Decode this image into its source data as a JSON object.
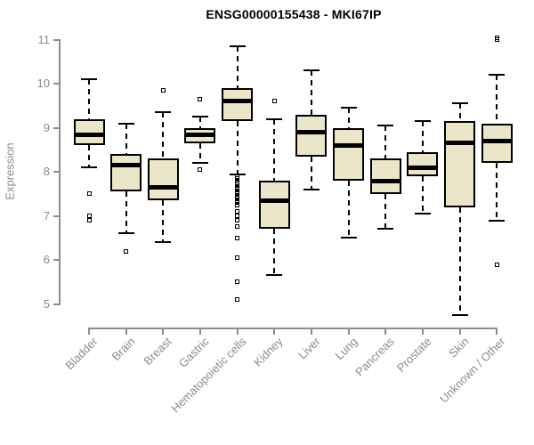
{
  "title": "ENSG00000155438 - MKI67IP",
  "colors": {
    "box_fill": "#EBE5C9",
    "box_border": "#000000",
    "median": "#000000",
    "axis": "#8C8C8C",
    "title_text": "#000000",
    "background": "#FFFFFF"
  },
  "chart_data": {
    "type": "boxplot",
    "title": "ENSG00000155438 - MKI67IP",
    "xlabel": "",
    "ylabel": "Expression",
    "ylim": [
      5,
      11
    ],
    "yticks": [
      5,
      6,
      7,
      8,
      9,
      10,
      11
    ],
    "grid": false,
    "legend": false,
    "categories": [
      "Bladder",
      "Brain",
      "Breast",
      "Gastric",
      "Hematopoietic cells",
      "Kidney",
      "Liver",
      "Lung",
      "Pancreas",
      "Prostate",
      "Skin",
      "Unknown / Other"
    ],
    "series": [
      {
        "label": "Bladder",
        "whisker_low": 8.1,
        "q1": 8.6,
        "median": 8.85,
        "q3": 9.2,
        "whisker_high": 10.1,
        "outliers": [
          7.5,
          7.0,
          6.9
        ]
      },
      {
        "label": "Brain",
        "whisker_low": 6.6,
        "q1": 7.55,
        "median": 8.15,
        "q3": 8.4,
        "whisker_high": 9.1,
        "outliers": [
          6.2
        ]
      },
      {
        "label": "Breast",
        "whisker_low": 6.4,
        "q1": 7.35,
        "median": 7.65,
        "q3": 8.3,
        "whisker_high": 9.35,
        "outliers": [
          9.85
        ]
      },
      {
        "label": "Gastric",
        "whisker_low": 8.2,
        "q1": 8.65,
        "median": 8.85,
        "q3": 9.0,
        "whisker_high": 9.25,
        "outliers": [
          9.65,
          8.05
        ]
      },
      {
        "label": "Hematopoietic cells",
        "whisker_low": 7.95,
        "q1": 9.15,
        "median": 9.6,
        "q3": 9.9,
        "whisker_high": 10.85,
        "outliers": [
          7.9,
          7.85,
          7.8,
          7.75,
          7.7,
          7.65,
          7.6,
          7.55,
          7.5,
          7.45,
          7.4,
          7.35,
          7.3,
          7.25,
          7.1,
          7.0,
          6.9,
          6.75,
          6.5,
          6.05,
          5.5,
          5.1
        ]
      },
      {
        "label": "Kidney",
        "whisker_low": 5.65,
        "q1": 6.7,
        "median": 7.35,
        "q3": 7.8,
        "whisker_high": 9.2,
        "outliers": [
          9.6
        ]
      },
      {
        "label": "Liver",
        "whisker_low": 7.6,
        "q1": 8.35,
        "median": 8.9,
        "q3": 9.3,
        "whisker_high": 10.3,
        "outliers": []
      },
      {
        "label": "Lung",
        "whisker_low": 6.5,
        "q1": 7.8,
        "median": 8.6,
        "q3": 9.0,
        "whisker_high": 9.45,
        "outliers": []
      },
      {
        "label": "Pancreas",
        "whisker_low": 6.7,
        "q1": 7.5,
        "median": 7.8,
        "q3": 8.3,
        "whisker_high": 9.05,
        "outliers": []
      },
      {
        "label": "Prostate",
        "whisker_low": 7.05,
        "q1": 7.9,
        "median": 8.1,
        "q3": 8.45,
        "whisker_high": 9.15,
        "outliers": []
      },
      {
        "label": "Skin",
        "whisker_low": 4.75,
        "q1": 7.2,
        "median": 8.65,
        "q3": 9.15,
        "whisker_high": 9.55,
        "outliers": []
      },
      {
        "label": "Unknown / Other",
        "whisker_low": 6.9,
        "q1": 8.2,
        "median": 8.7,
        "q3": 9.1,
        "whisker_high": 10.2,
        "outliers": [
          11.05,
          11.0,
          5.9
        ]
      }
    ]
  }
}
